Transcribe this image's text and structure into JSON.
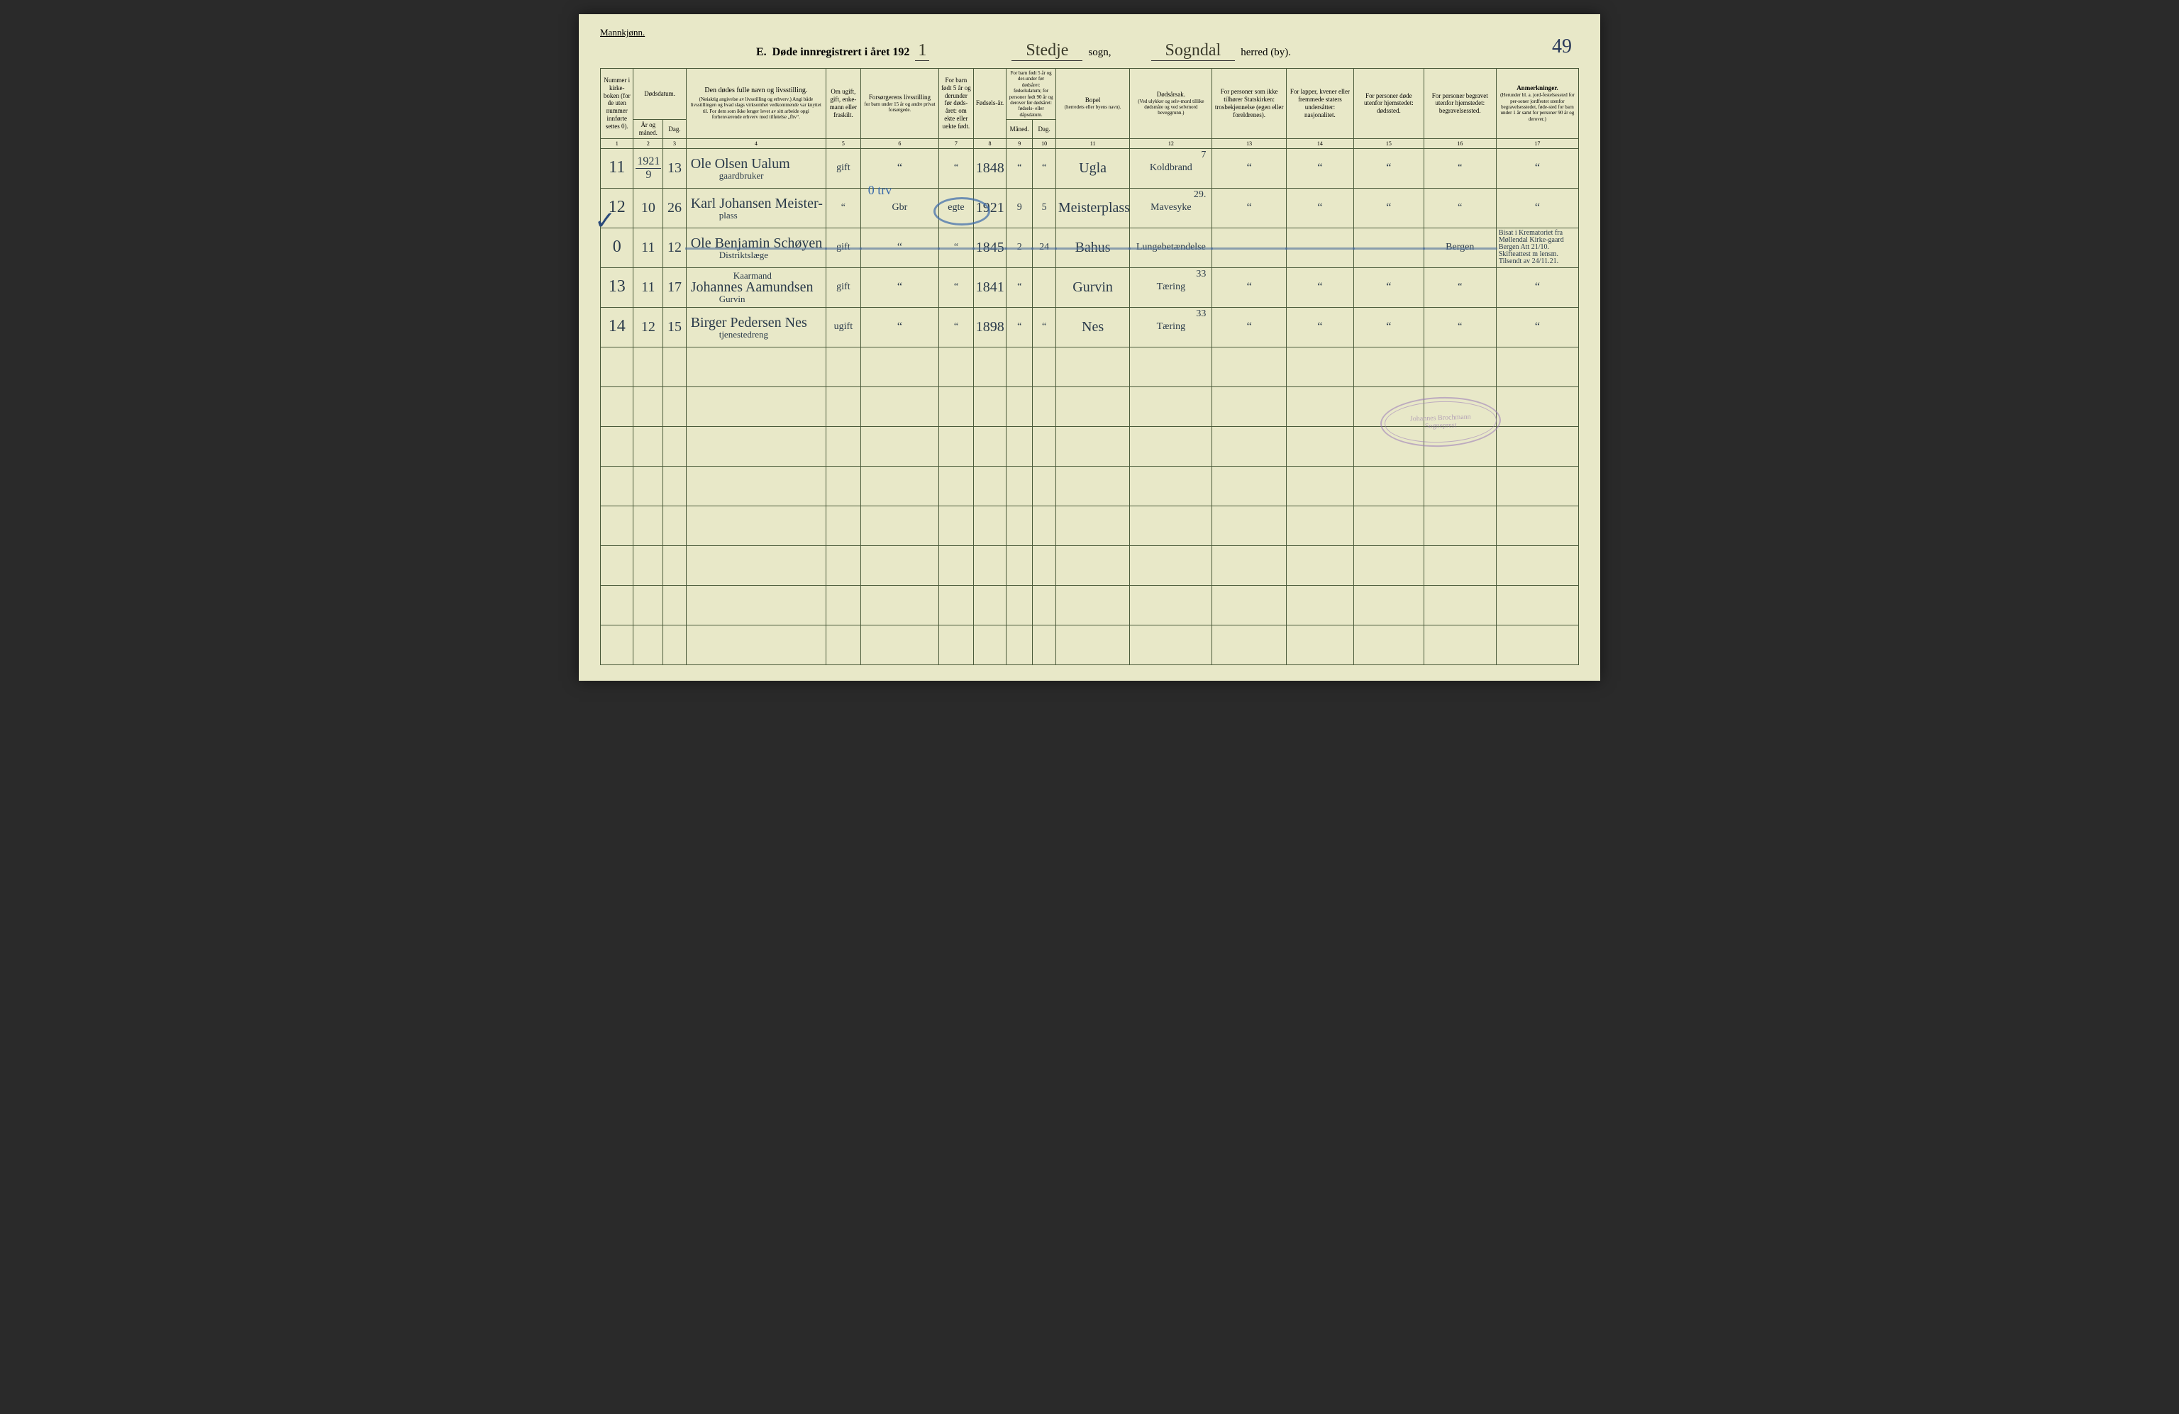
{
  "page": {
    "gender_label": "Mannkjønn.",
    "section_letter": "E.",
    "title_prefix": "Døde innregistrert i året 192",
    "year_suffix": "1",
    "sogn_value": "Stedje",
    "sogn_label": "sogn,",
    "herred_value": "Sogndal",
    "herred_label": "herred (by).",
    "page_number": "49"
  },
  "headers": {
    "c1": "Nummer i kirke-boken (for de uten nummer innførte settes 0).",
    "c2_top": "Dødsdatum.",
    "c2a": "År og måned.",
    "c2b": "Dag.",
    "c4": "Den dødes fulle navn og livsstilling.",
    "c4_sub": "(Nøiaktig angivelse av livsstilling og erhverv.) Angi både livsstillingen og hvad slags virksomhet vedkommende var knyttet til. For dem som ikke lenger levet av sitt arbeide opgi forhenværende erhverv med tilføielse „fhv“.",
    "c5": "Om ugift, gift, enke-mann eller fraskilt.",
    "c6": "Forsørgerens livsstilling",
    "c6_sub": "for barn under 15 år og andre privat forsørgede.",
    "c7": "For barn født 5 år og derunder før døds-året: om ekte eller uekte født.",
    "c8": "Fødsels-år.",
    "c9_top": "For barn født 5 år og der-under før dødsåret: fødselsdatum; for personer født 90 år og derover før dødsåret: fødsels- eller dåpsdatum.",
    "c9a": "Måned.",
    "c9b": "Dag.",
    "c11": "Bopel",
    "c11_sub": "(herredets eller byens navn).",
    "c12": "Dødsårsak.",
    "c12_sub": "(Ved ulykker og selv-mord tillike dødsmåte og ved selvmord beveggrunn.)",
    "c13": "For personer som ikke tilhører Statskirken: trosbekjennelse (egen eller foreldrenes).",
    "c14": "For lapper, kvener eller fremmede staters undersåtter: nasjonalitet.",
    "c15": "For personer døde utenfor hjemstedet: dødssted.",
    "c16": "For personer begravet utenfor hjemstedet: begravelsessted.",
    "c17": "Anmerkninger.",
    "c17_sub": "(Herunder bl. a. jord-festelsessted for per-soner jordfestet utenfor begravelsesstedet, føde-sted for barn under 1 år samt for personer 90 år og derover.)"
  },
  "colnums": [
    "1",
    "2",
    "3",
    "4",
    "5",
    "6",
    "7",
    "8",
    "9",
    "10",
    "11",
    "12",
    "13",
    "14",
    "15",
    "16",
    "17"
  ],
  "rows": [
    {
      "num": "11",
      "year_frac_top": "1921",
      "year_frac_bot": "9",
      "day": "13",
      "name": "Ole Olsen Ualum",
      "occupation": "gaardbruker",
      "status": "gift",
      "provider": "“",
      "legit": "“",
      "birth_year": "1848",
      "bd_m": "“",
      "bd_d": "“",
      "residence": "Ugla",
      "cause": "Koldbrand",
      "cause_code": "7",
      "c13": "“",
      "c14": "“",
      "c15": "“",
      "c16": "“",
      "c17": "“"
    },
    {
      "num": "12",
      "month": "10",
      "day": "26",
      "name": "Karl Johansen Meister-",
      "occupation": "plass",
      "status": "“",
      "provider": "Gbr",
      "legit": "egte",
      "birth_year": "1921",
      "bd_m": "9",
      "bd_d": "5",
      "residence": "Meisterplass",
      "cause": "Mavesyke",
      "cause_code": "29.",
      "c13": "“",
      "c14": "“",
      "c15": "“",
      "c16": "“",
      "c17": "“",
      "blue_note": "0 trv"
    },
    {
      "num": "0",
      "month": "11",
      "day": "12",
      "name": "Ole Benjamin Schøyen",
      "occupation": "Distriktslæge",
      "status": "gift",
      "provider": "“",
      "legit": "“",
      "birth_year": "1845",
      "bd_m": "2",
      "bd_d": "24",
      "residence": "Bahus",
      "cause": "Lungebetændelse",
      "c13": "",
      "c14": "",
      "c15": "",
      "c16": "Bergen",
      "remarks": "Bisat i Krematoriet fra Møllendal Kirke-gaard Bergen Att 21/10. Skifteattest m lensm. Tilsendt av 24/11.21.",
      "struck": true
    },
    {
      "num": "13",
      "month": "11",
      "day": "17",
      "name_pre": "Kaarmand",
      "name": "Johannes Aamundsen",
      "occupation": "Gurvin",
      "status": "gift",
      "provider": "“",
      "legit": "“",
      "birth_year": "1841",
      "bd_m": "“",
      "bd_d": "",
      "residence": "Gurvin",
      "cause": "Tæring",
      "cause_code": "33",
      "c13": "“",
      "c14": "“",
      "c15": "“",
      "c16": "“",
      "c17": "“"
    },
    {
      "num": "14",
      "month": "12",
      "day": "15",
      "name": "Birger Pedersen Nes",
      "occupation": "tjenestedreng",
      "status": "ugift",
      "provider": "“",
      "legit": "“",
      "birth_year": "1898",
      "bd_m": "“",
      "bd_d": "“",
      "residence": "Nes",
      "cause": "Tæring",
      "cause_code": "33",
      "c13": "“",
      "c14": "“",
      "c15": "“",
      "c16": "“",
      "c17": "“"
    }
  ],
  "stamp": {
    "line1": "Johannes Brochmann",
    "line2": "Sogneprest"
  },
  "empty_rows": 8
}
